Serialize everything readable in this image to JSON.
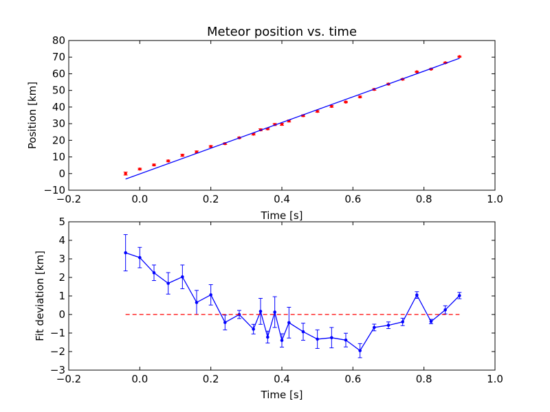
{
  "chart_data": [
    {
      "type": "scatter",
      "title": "Meteor position vs. time",
      "xlabel": "Time [s]",
      "ylabel": "Position [km]",
      "xlim": [
        -0.2,
        1.0
      ],
      "ylim": [
        -10,
        80
      ],
      "xticks": [
        "−0.2",
        "0.0",
        "0.2",
        "0.4",
        "0.6",
        "0.8",
        "1.0"
      ],
      "xtick_values": [
        -0.2,
        0.0,
        0.2,
        0.4,
        0.6,
        0.8,
        1.0
      ],
      "yticks": [
        "−10",
        "0",
        "10",
        "20",
        "30",
        "40",
        "50",
        "60",
        "70",
        "80"
      ],
      "ytick_values": [
        -10,
        0,
        10,
        20,
        30,
        40,
        50,
        60,
        70,
        80
      ],
      "grid": false,
      "series": [
        {
          "kind": "points-with-errorbars",
          "color": "#ff0000",
          "x": [
            -0.04,
            0.0,
            0.04,
            0.08,
            0.12,
            0.16,
            0.2,
            0.24,
            0.28,
            0.32,
            0.34,
            0.36,
            0.38,
            0.4,
            0.42,
            0.46,
            0.5,
            0.54,
            0.58,
            0.62,
            0.66,
            0.7,
            0.74,
            0.78,
            0.82,
            0.86,
            0.9
          ],
          "y": [
            0.0,
            2.7,
            5.2,
            7.6,
            11.0,
            13.0,
            16.3,
            18.0,
            21.5,
            23.7,
            26.3,
            26.9,
            29.5,
            29.6,
            31.6,
            34.8,
            37.4,
            40.4,
            43.0,
            46.1,
            50.6,
            53.8,
            56.7,
            61.2,
            62.8,
            66.6,
            70.3
          ],
          "err": [
            0.9,
            0.5,
            0.5,
            0.5,
            0.6,
            0.6,
            0.5,
            0.5,
            0.4,
            0.5,
            0.6,
            0.5,
            0.6,
            0.6,
            0.6,
            0.5,
            0.5,
            0.5,
            0.4,
            0.5,
            0.5,
            0.5,
            0.4,
            0.3,
            0.3,
            0.4,
            0.3
          ]
        },
        {
          "kind": "fit-line",
          "color": "#0000ff",
          "x": [
            -0.04,
            0.9
          ],
          "y": [
            -3.3,
            69.3
          ]
        }
      ]
    },
    {
      "type": "line",
      "title": "",
      "xlabel": "Time [s]",
      "ylabel": "Fit deviation [km]",
      "xlim": [
        -0.2,
        1.0
      ],
      "ylim": [
        -3,
        5
      ],
      "xticks": [
        "−0.2",
        "0.0",
        "0.2",
        "0.4",
        "0.6",
        "0.8",
        "1.0"
      ],
      "xtick_values": [
        -0.2,
        0.0,
        0.2,
        0.4,
        0.6,
        0.8,
        1.0
      ],
      "yticks": [
        "−3",
        "−2",
        "−1",
        "0",
        "1",
        "2",
        "3",
        "4",
        "5"
      ],
      "ytick_values": [
        -3,
        -2,
        -1,
        0,
        1,
        2,
        3,
        4,
        5
      ],
      "grid": false,
      "series": [
        {
          "kind": "line-with-errorbars",
          "color": "#0000ff",
          "x": [
            -0.04,
            0.0,
            0.04,
            0.08,
            0.12,
            0.16,
            0.2,
            0.24,
            0.28,
            0.32,
            0.34,
            0.36,
            0.38,
            0.4,
            0.42,
            0.46,
            0.5,
            0.54,
            0.58,
            0.62,
            0.66,
            0.7,
            0.74,
            0.78,
            0.82,
            0.86,
            0.9
          ],
          "y": [
            3.33,
            3.07,
            2.25,
            1.68,
            2.03,
            0.65,
            1.06,
            -0.43,
            0.0,
            -0.79,
            0.17,
            -1.22,
            0.13,
            -1.4,
            -0.44,
            -0.93,
            -1.33,
            -1.25,
            -1.38,
            -1.95,
            -0.7,
            -0.58,
            -0.4,
            1.05,
            -0.38,
            0.25,
            1.02
          ],
          "err": [
            0.98,
            0.55,
            0.42,
            0.58,
            0.64,
            0.65,
            0.55,
            0.4,
            0.22,
            0.26,
            0.7,
            0.32,
            0.83,
            0.36,
            0.83,
            0.46,
            0.5,
            0.55,
            0.37,
            0.38,
            0.18,
            0.18,
            0.2,
            0.18,
            0.12,
            0.22,
            0.17
          ]
        },
        {
          "kind": "zero-reference",
          "color": "#ff0000",
          "x": [
            -0.04,
            0.9
          ],
          "y": [
            0,
            0
          ]
        }
      ]
    }
  ]
}
